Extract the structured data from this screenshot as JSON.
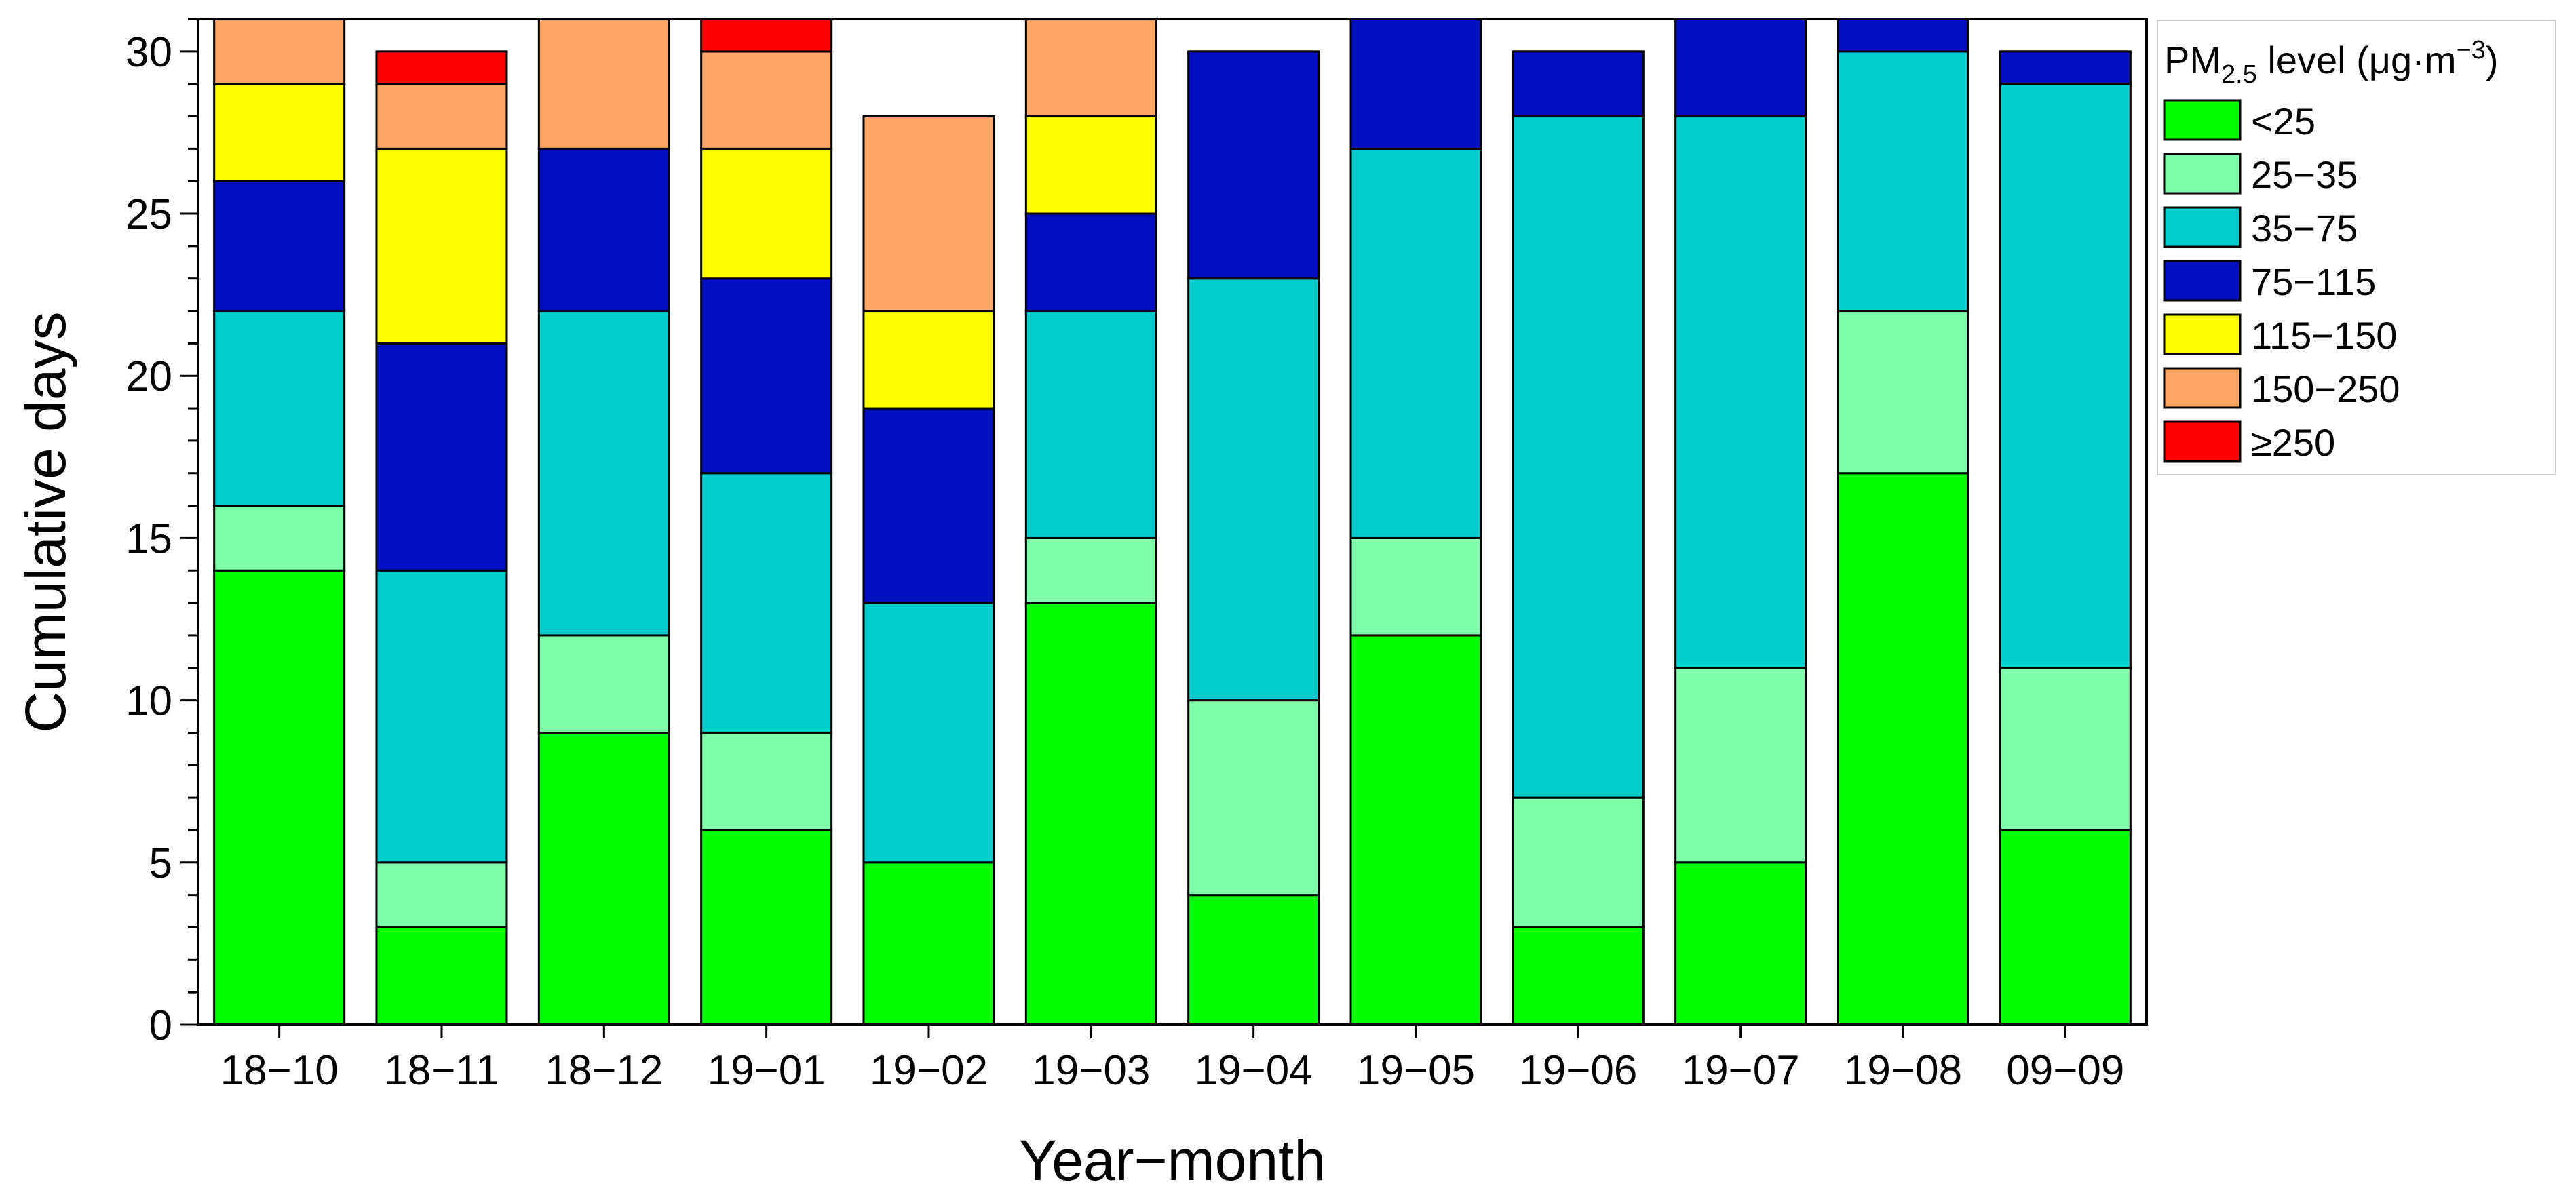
{
  "chart_data": {
    "type": "bar",
    "stacked": true,
    "title": "",
    "xlabel": "Year−month",
    "ylabel": "Cumulative days",
    "ylim": [
      0,
      31
    ],
    "yticks": [
      "0",
      "5",
      "10",
      "15",
      "20",
      "25",
      "30"
    ],
    "categories": [
      "18−10",
      "18−11",
      "18−12",
      "19−01",
      "19−02",
      "19−03",
      "19−04",
      "19−05",
      "19−06",
      "19−07",
      "19−08",
      "09−09"
    ],
    "series": [
      {
        "name": "<25",
        "color": "#00ff00",
        "values": [
          14,
          3,
          9,
          6,
          5,
          13,
          4,
          12,
          3,
          5,
          17,
          6
        ]
      },
      {
        "name": "25−35",
        "color": "#80ffaa",
        "values": [
          2,
          2,
          3,
          3,
          0,
          2,
          6,
          3,
          4,
          6,
          5,
          5
        ]
      },
      {
        "name": "35−75",
        "color": "#00cccc",
        "values": [
          6,
          9,
          10,
          8,
          8,
          7,
          13,
          12,
          21,
          17,
          8,
          18
        ]
      },
      {
        "name": "75−115",
        "color": "#0010c0",
        "values": [
          4,
          7,
          5,
          6,
          6,
          3,
          7,
          4,
          2,
          3,
          1,
          1
        ]
      },
      {
        "name": "115−150",
        "color": "#ffff00",
        "values": [
          3,
          6,
          0,
          4,
          3,
          3,
          0,
          0,
          0,
          0,
          0,
          0
        ]
      },
      {
        "name": "150−250",
        "color": "#ffa666",
        "values": [
          2,
          2,
          4,
          3,
          6,
          3,
          0,
          0,
          0,
          0,
          0,
          0
        ]
      },
      {
        "name": "≥250",
        "color": "#ff0000",
        "values": [
          0,
          1,
          0,
          1,
          0,
          0,
          0,
          0,
          0,
          0,
          0,
          0
        ]
      }
    ],
    "legend": {
      "title_prefix": "PM",
      "title_sub": "2.5",
      "title_mid": " level (μg·m",
      "title_sup": "−3",
      "title_end": ")",
      "placement": "right"
    },
    "grid": false
  }
}
